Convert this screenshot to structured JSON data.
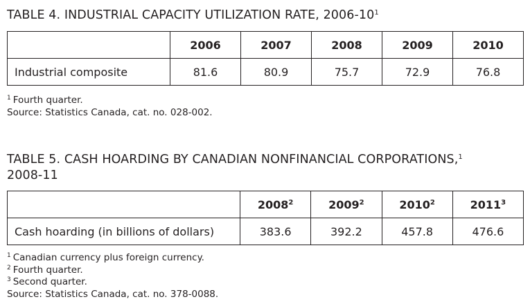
{
  "table4": {
    "title": "TABLE 4. INDUSTRIAL CAPACITY UTILIZATION RATE, 2006-10",
    "title_sup": "1",
    "columns": [
      "2006",
      "2007",
      "2008",
      "2009",
      "2010"
    ],
    "row": {
      "label": "Industrial composite",
      "values": [
        "81.6",
        "80.9",
        "75.7",
        "72.9",
        "76.8"
      ]
    },
    "footnotes": [
      {
        "sup": "1",
        "text": "Fourth quarter."
      }
    ],
    "source": "Source: Statistics Canada, cat. no. 028-002."
  },
  "table5": {
    "title": "TABLE 5. CASH HOARDING BY CANADIAN NONFINANCIAL CORPORATIONS,",
    "title_sup": "1",
    "title_line2": "2008-11",
    "columns": [
      {
        "label": "2008",
        "sup": "2"
      },
      {
        "label": "2009",
        "sup": "2"
      },
      {
        "label": "2010",
        "sup": "2"
      },
      {
        "label": "2011",
        "sup": "3"
      }
    ],
    "row": {
      "label": "Cash hoarding (in billions of dollars)",
      "values": [
        "383.6",
        "392.2",
        "457.8",
        "476.6"
      ]
    },
    "footnotes": [
      {
        "sup": "1",
        "text": "Canadian currency plus foreign currency."
      },
      {
        "sup": "2",
        "text": "Fourth quarter."
      },
      {
        "sup": "3",
        "text": "Second quarter."
      }
    ],
    "source": "Source: Statistics Canada, cat. no. 378-0088."
  }
}
